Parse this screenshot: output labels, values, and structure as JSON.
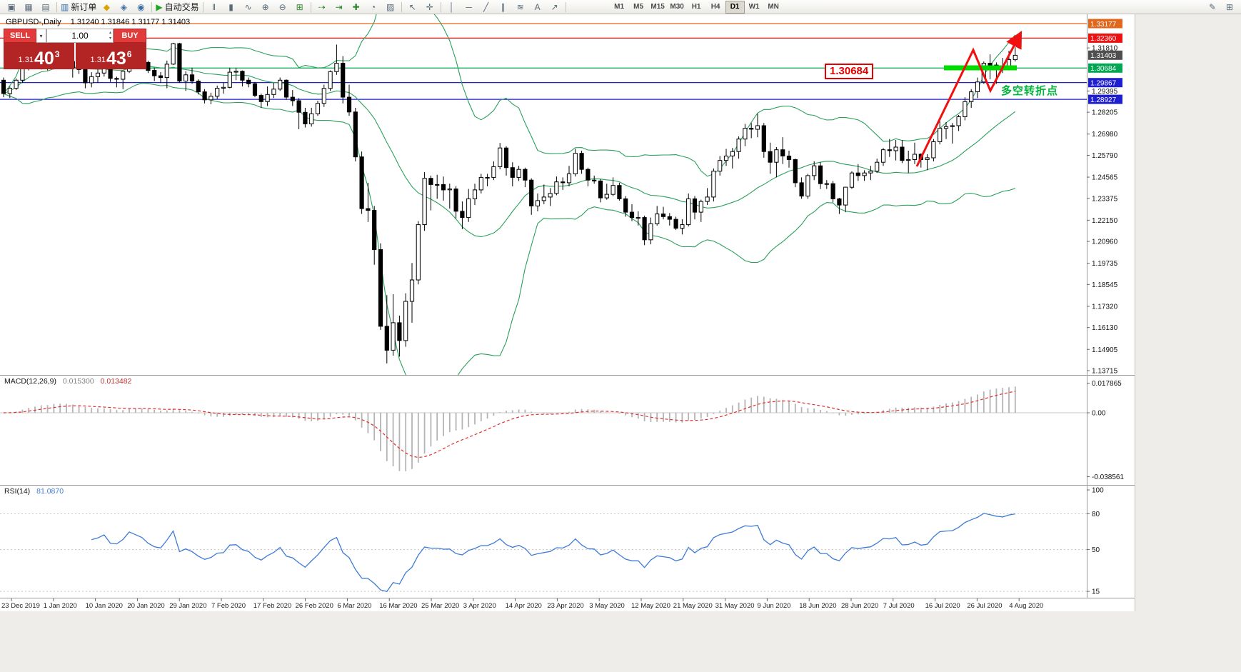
{
  "header": {
    "symbol_period": "GBPUSD-,Daily",
    "ohlc_values": "1.31240 1.31846 1.31177 1.31403"
  },
  "icons": {
    "chevron_down": "▾",
    "spinner_up": "▴",
    "spinner_down": "▾"
  },
  "toolbar": {
    "buttons": [
      {
        "name": "terminal-icon",
        "glyph": "▣"
      },
      {
        "name": "new-chart-icon",
        "glyph": "▦"
      },
      {
        "name": "profiles-icon",
        "glyph": "▤"
      },
      {
        "name": "sep"
      },
      {
        "name": "new-order-button",
        "glyph": "▥",
        "label": "新订单",
        "color": "#3a6ea5"
      },
      {
        "name": "marketwatch-icon",
        "glyph": "◆",
        "color": "#d9a400"
      },
      {
        "name": "data-window-icon",
        "glyph": "◈",
        "color": "#3a6ea5"
      },
      {
        "name": "navigator-icon",
        "glyph": "◉",
        "color": "#3a6ea5"
      },
      {
        "name": "sep"
      },
      {
        "name": "autotrading-button",
        "glyph": "▶",
        "label": "自动交易",
        "color": "#1fa51f"
      },
      {
        "name": "sep"
      },
      {
        "name": "bar-chart-icon",
        "glyph": "‖"
      },
      {
        "name": "candlestick-chart-icon",
        "glyph": "▮"
      },
      {
        "name": "line-chart-icon",
        "glyph": "∿"
      },
      {
        "name": "zoom-in-icon",
        "glyph": "⊕"
      },
      {
        "name": "zoom-out-icon",
        "glyph": "⊖"
      },
      {
        "name": "grid-icon",
        "glyph": "⊞",
        "color": "#2e8b2e"
      },
      {
        "name": "sep"
      },
      {
        "name": "autoscroll-icon",
        "glyph": "⇢",
        "color": "#2e8b2e"
      },
      {
        "name": "chart-shift-icon",
        "glyph": "⇥",
        "color": "#2e8b2e"
      },
      {
        "name": "indicators-icon",
        "glyph": "✚",
        "color": "#2e8b2e"
      },
      {
        "name": "periodicity-icon",
        "glyph": "◔"
      },
      {
        "name": "templates-icon",
        "glyph": "▨"
      },
      {
        "name": "sep"
      },
      {
        "name": "cursor-icon",
        "glyph": "↖"
      },
      {
        "name": "crosshair-icon",
        "glyph": "✛"
      },
      {
        "name": "sep"
      },
      {
        "name": "vertical-line-icon",
        "glyph": "│"
      },
      {
        "name": "horizontal-line-icon",
        "glyph": "─"
      },
      {
        "name": "trendline-icon",
        "glyph": "╱"
      },
      {
        "name": "channel-icon",
        "glyph": "∥"
      },
      {
        "name": "fibonacci-icon",
        "glyph": "≋"
      },
      {
        "name": "text-icon",
        "glyph": "A"
      },
      {
        "name": "arrows-icon",
        "glyph": "↗"
      },
      {
        "name": "sep"
      }
    ],
    "timeframes": [
      {
        "label": "M1"
      },
      {
        "label": "M5"
      },
      {
        "label": "M15"
      },
      {
        "label": "M30"
      },
      {
        "label": "H1"
      },
      {
        "label": "H4"
      },
      {
        "label": "D1",
        "active": true
      },
      {
        "label": "W1"
      },
      {
        "label": "MN"
      }
    ],
    "right_buttons": [
      {
        "name": "edit-icon",
        "glyph": "✎"
      },
      {
        "name": "windows-icon",
        "glyph": "⊞"
      }
    ]
  },
  "trade_panel": {
    "sell_label": "SELL",
    "buy_label": "BUY",
    "volume": "1.00",
    "bid": {
      "prefix": "1.31",
      "big": "40",
      "sup": "3"
    },
    "ask": {
      "prefix": "1.31",
      "big": "43",
      "sup": "6"
    }
  },
  "annotations": {
    "price_callout": "1.30684",
    "turning_point_text": "多空转折点"
  },
  "price_axis": {
    "hlines": [
      {
        "label": "1.33177",
        "value": 1.33177,
        "color": "#e2661b"
      },
      {
        "label": "1.32360",
        "value": 1.3236,
        "color": "#ee1111"
      },
      {
        "label": "1.30684",
        "value": 1.30684,
        "color": "#00a651"
      },
      {
        "label": "1.29867",
        "value": 1.29867,
        "color": "#1f1fd0"
      },
      {
        "label": "1.28927",
        "value": 1.28927,
        "color": "#1f1fd0"
      }
    ],
    "bid_tag": {
      "label": "1.31403",
      "value": 1.31403,
      "bg": "#4f4f4f"
    },
    "ticks": [
      "1.31810",
      "1.29395",
      "1.28205",
      "1.26980",
      "1.25790",
      "1.24565",
      "1.23375",
      "1.22150",
      "1.20960",
      "1.19735",
      "1.18545",
      "1.17320",
      "1.16130",
      "1.14905",
      "1.13715"
    ]
  },
  "macd_panel": {
    "name": "MACD(12,26,9)",
    "value_main": "0.015300",
    "value_signal": "0.013482",
    "scale": [
      {
        "label": "0.017865",
        "value": 0.017865
      },
      {
        "label": "0.00",
        "value": 0
      },
      {
        "label": "-0.038561",
        "value": -0.038561
      }
    ]
  },
  "rsi_panel": {
    "name": "RSI(14)",
    "value": "81.0870",
    "levels": [
      80,
      50,
      15
    ],
    "scale": [
      {
        "label": "100",
        "value": 100
      },
      {
        "label": "80",
        "value": 80
      },
      {
        "label": "50",
        "value": 50
      },
      {
        "label": "15",
        "value": 15
      }
    ]
  },
  "chart_data": {
    "type": "candlestick",
    "symbol": "GBPUSD",
    "period": "Daily",
    "title": "GBPUSD-,Daily 1.31240 1.31846 1.31177 1.31403",
    "price_range_visible": [
      1.135,
      1.3375
    ],
    "overlays": {
      "bollinger": {
        "period": 20,
        "deviation": 2
      }
    },
    "hline_levels": [
      1.33177,
      1.3236,
      1.30684,
      1.29867,
      1.28927
    ],
    "x_axis_dates": [
      "23 Dec 2019",
      "1 Jan 2020",
      "10 Jan 2020",
      "20 Jan 2020",
      "29 Jan 2020",
      "7 Feb 2020",
      "17 Feb 2020",
      "26 Feb 2020",
      "6 Mar 2020",
      "16 Mar 2020",
      "25 Mar 2020",
      "3 Apr 2020",
      "14 Apr 2020",
      "23 Apr 2020",
      "3 May 2020",
      "12 May 2020",
      "21 May 2020",
      "31 May 2020",
      "9 Jun 2020",
      "18 Jun 2020",
      "28 Jun 2020",
      "7 Jul 2020",
      "16 Jul 2020",
      "26 Jul 2020",
      "4 Aug 2020"
    ],
    "candles": [
      [
        1.3,
        1.3015,
        1.2905,
        1.2925
      ],
      [
        1.2925,
        1.2965,
        1.29,
        1.2955
      ],
      [
        1.2955,
        1.301,
        1.2945,
        1.3
      ],
      [
        1.3,
        1.311,
        1.2985,
        1.3085
      ],
      [
        1.3085,
        1.3135,
        1.3055,
        1.3115
      ],
      [
        1.3115,
        1.3155,
        1.3075,
        1.311
      ],
      [
        1.311,
        1.315,
        1.306,
        1.314
      ],
      [
        1.314,
        1.3155,
        1.3055,
        1.3085
      ],
      [
        1.3085,
        1.318,
        1.306,
        1.3165
      ],
      [
        1.3165,
        1.321,
        1.3095,
        1.312
      ],
      [
        1.312,
        1.315,
        1.308,
        1.3105
      ],
      [
        1.3105,
        1.3125,
        1.3015,
        1.307
      ],
      [
        1.307,
        1.309,
        1.3035,
        1.306
      ],
      [
        1.306,
        1.3065,
        1.2955,
        1.2985
      ],
      [
        1.2985,
        1.3045,
        1.296,
        1.302
      ],
      [
        1.302,
        1.306,
        1.2985,
        1.304
      ],
      [
        1.304,
        1.31,
        1.302,
        1.3075
      ],
      [
        1.3075,
        1.3085,
        1.299,
        1.301
      ],
      [
        1.301,
        1.302,
        1.296,
        1.3005
      ],
      [
        1.3005,
        1.3055,
        1.295,
        1.305
      ],
      [
        1.305,
        1.315,
        1.304,
        1.314
      ],
      [
        1.314,
        1.3155,
        1.308,
        1.312
      ],
      [
        1.312,
        1.3135,
        1.307,
        1.31
      ],
      [
        1.31,
        1.311,
        1.304,
        1.3055
      ],
      [
        1.3055,
        1.307,
        1.2995,
        1.3025
      ],
      [
        1.3025,
        1.3045,
        1.2985,
        1.3015
      ],
      [
        1.3015,
        1.311,
        1.2955,
        1.309
      ],
      [
        1.309,
        1.321,
        1.3085,
        1.3205
      ],
      [
        1.3205,
        1.321,
        1.2985,
        1.2995
      ],
      [
        1.2995,
        1.305,
        1.294,
        1.303
      ],
      [
        1.303,
        1.307,
        1.298,
        1.2995
      ],
      [
        1.2995,
        1.3005,
        1.292,
        1.2935
      ],
      [
        1.2935,
        1.295,
        1.287,
        1.289
      ],
      [
        1.289,
        1.293,
        1.2865,
        1.291
      ],
      [
        1.291,
        1.297,
        1.2895,
        1.2955
      ],
      [
        1.2955,
        1.2985,
        1.2925,
        1.296
      ],
      [
        1.296,
        1.307,
        1.2955,
        1.3045
      ],
      [
        1.3045,
        1.307,
        1.3,
        1.305
      ],
      [
        1.305,
        1.3055,
        1.2965,
        1.3
      ],
      [
        1.3,
        1.3015,
        1.296,
        1.298
      ],
      [
        1.298,
        1.299,
        1.2905,
        1.2915
      ],
      [
        1.2915,
        1.2925,
        1.2845,
        1.288
      ],
      [
        1.288,
        1.2965,
        1.2855,
        1.292
      ],
      [
        1.292,
        1.2985,
        1.29,
        1.295
      ],
      [
        1.295,
        1.3015,
        1.294,
        1.3
      ],
      [
        1.3,
        1.3005,
        1.289,
        1.2905
      ],
      [
        1.2905,
        1.2945,
        1.2855,
        1.2885
      ],
      [
        1.2885,
        1.29,
        1.2725,
        1.282
      ],
      [
        1.282,
        1.2845,
        1.2735,
        1.2755
      ],
      [
        1.2755,
        1.2845,
        1.274,
        1.2812
      ],
      [
        1.2812,
        1.2885,
        1.28,
        1.287
      ],
      [
        1.287,
        1.2975,
        1.285,
        1.2954
      ],
      [
        1.2954,
        1.3055,
        1.294,
        1.3048
      ],
      [
        1.3048,
        1.32,
        1.303,
        1.3095
      ],
      [
        1.3095,
        1.3135,
        1.287,
        1.2905
      ],
      [
        1.2905,
        1.2975,
        1.28,
        1.2822
      ],
      [
        1.2822,
        1.2845,
        1.2545,
        1.257
      ],
      [
        1.257,
        1.26,
        1.225,
        1.228
      ],
      [
        1.228,
        1.2425,
        1.2205,
        1.227
      ],
      [
        1.227,
        1.2295,
        1.1965,
        1.205
      ],
      [
        1.205,
        1.2085,
        1.16,
        1.162
      ],
      [
        1.162,
        1.1795,
        1.1412,
        1.1486
      ],
      [
        1.1486,
        1.18,
        1.1455,
        1.164
      ],
      [
        1.164,
        1.168,
        1.145,
        1.154
      ],
      [
        1.154,
        1.1805,
        1.1505,
        1.176
      ],
      [
        1.176,
        1.1975,
        1.164,
        1.188
      ],
      [
        1.188,
        1.221,
        1.1855,
        1.219
      ],
      [
        1.219,
        1.2485,
        1.2155,
        1.245
      ],
      [
        1.245,
        1.2465,
        1.227,
        1.2415
      ],
      [
        1.2415,
        1.247,
        1.2335,
        1.2415
      ],
      [
        1.2415,
        1.246,
        1.2325,
        1.2385
      ],
      [
        1.2385,
        1.242,
        1.228,
        1.239
      ],
      [
        1.239,
        1.2405,
        1.2225,
        1.2265
      ],
      [
        1.2265,
        1.232,
        1.2165,
        1.223
      ],
      [
        1.223,
        1.239,
        1.2205,
        1.2335
      ],
      [
        1.2335,
        1.242,
        1.23,
        1.2385
      ],
      [
        1.2385,
        1.2475,
        1.2365,
        1.2455
      ],
      [
        1.2455,
        1.2475,
        1.2405,
        1.2455
      ],
      [
        1.2455,
        1.2545,
        1.244,
        1.2515
      ],
      [
        1.2515,
        1.2648,
        1.25,
        1.262
      ],
      [
        1.262,
        1.263,
        1.2465,
        1.251
      ],
      [
        1.251,
        1.254,
        1.2405,
        1.2455
      ],
      [
        1.2455,
        1.252,
        1.2435,
        1.25
      ],
      [
        1.25,
        1.251,
        1.24,
        1.244
      ],
      [
        1.244,
        1.245,
        1.2245,
        1.2295
      ],
      [
        1.2295,
        1.2365,
        1.2265,
        1.2325
      ],
      [
        1.2325,
        1.2415,
        1.2305,
        1.2345
      ],
      [
        1.2345,
        1.2395,
        1.2295,
        1.2365
      ],
      [
        1.2365,
        1.246,
        1.2355,
        1.243
      ],
      [
        1.243,
        1.2455,
        1.2385,
        1.2425
      ],
      [
        1.2425,
        1.252,
        1.2405,
        1.2475
      ],
      [
        1.2475,
        1.2615,
        1.246,
        1.259
      ],
      [
        1.259,
        1.2605,
        1.2475,
        1.25
      ],
      [
        1.25,
        1.251,
        1.2405,
        1.244
      ],
      [
        1.244,
        1.2465,
        1.242,
        1.2435
      ],
      [
        1.2435,
        1.2445,
        1.2315,
        1.234
      ],
      [
        1.234,
        1.242,
        1.233,
        1.236
      ],
      [
        1.236,
        1.2455,
        1.235,
        1.241
      ],
      [
        1.241,
        1.2425,
        1.2325,
        1.2335
      ],
      [
        1.2335,
        1.235,
        1.2235,
        1.226
      ],
      [
        1.226,
        1.2305,
        1.221,
        1.223
      ],
      [
        1.223,
        1.2265,
        1.2185,
        1.223
      ],
      [
        1.223,
        1.224,
        1.2075,
        1.2105
      ],
      [
        1.2105,
        1.223,
        1.208,
        1.2195
      ],
      [
        1.2195,
        1.2295,
        1.2185,
        1.225
      ],
      [
        1.225,
        1.229,
        1.222,
        1.2235
      ],
      [
        1.2235,
        1.2255,
        1.2185,
        1.222
      ],
      [
        1.222,
        1.2235,
        1.216,
        1.217
      ],
      [
        1.217,
        1.222,
        1.2135,
        1.219
      ],
      [
        1.219,
        1.2365,
        1.218,
        1.2335
      ],
      [
        1.2335,
        1.235,
        1.222,
        1.226
      ],
      [
        1.226,
        1.233,
        1.2205,
        1.232
      ],
      [
        1.232,
        1.2395,
        1.23,
        1.2345
      ],
      [
        1.2345,
        1.2505,
        1.232,
        1.249
      ],
      [
        1.249,
        1.2575,
        1.2465,
        1.255
      ],
      [
        1.255,
        1.2615,
        1.252,
        1.2575
      ],
      [
        1.2575,
        1.262,
        1.2505,
        1.26
      ],
      [
        1.26,
        1.2685,
        1.256,
        1.267
      ],
      [
        1.267,
        1.2755,
        1.263,
        1.273
      ],
      [
        1.273,
        1.276,
        1.2675,
        1.2725
      ],
      [
        1.2725,
        1.2812,
        1.268,
        1.2745
      ],
      [
        1.2745,
        1.276,
        1.2565,
        1.26
      ],
      [
        1.26,
        1.265,
        1.2475,
        1.254
      ],
      [
        1.254,
        1.2625,
        1.2455,
        1.261
      ],
      [
        1.261,
        1.268,
        1.253,
        1.2575
      ],
      [
        1.2575,
        1.2605,
        1.251,
        1.2555
      ],
      [
        1.2555,
        1.256,
        1.24,
        1.2425
      ],
      [
        1.2425,
        1.2455,
        1.2335,
        1.235
      ],
      [
        1.235,
        1.2475,
        1.2335,
        1.2465
      ],
      [
        1.2465,
        1.2545,
        1.244,
        1.252
      ],
      [
        1.252,
        1.254,
        1.239,
        1.242
      ],
      [
        1.242,
        1.244,
        1.239,
        1.242
      ],
      [
        1.242,
        1.2435,
        1.2315,
        1.2335
      ],
      [
        1.2335,
        1.234,
        1.225,
        1.23
      ],
      [
        1.23,
        1.24,
        1.226,
        1.24
      ],
      [
        1.24,
        1.249,
        1.239,
        1.248
      ],
      [
        1.248,
        1.253,
        1.2435,
        1.2465
      ],
      [
        1.2465,
        1.2495,
        1.2435,
        1.248
      ],
      [
        1.248,
        1.252,
        1.244,
        1.249
      ],
      [
        1.249,
        1.256,
        1.248,
        1.254
      ],
      [
        1.254,
        1.262,
        1.252,
        1.261
      ],
      [
        1.261,
        1.267,
        1.257,
        1.2605
      ],
      [
        1.2605,
        1.2665,
        1.255,
        1.2625
      ],
      [
        1.2625,
        1.2665,
        1.2535,
        1.255
      ],
      [
        1.255,
        1.2605,
        1.248,
        1.2555
      ],
      [
        1.2555,
        1.265,
        1.253,
        1.2585
      ],
      [
        1.2585,
        1.259,
        1.251,
        1.2555
      ],
      [
        1.2555,
        1.2585,
        1.2495,
        1.2565
      ],
      [
        1.2565,
        1.267,
        1.2545,
        1.2655
      ],
      [
        1.2655,
        1.277,
        1.264,
        1.273
      ],
      [
        1.273,
        1.2765,
        1.267,
        1.274
      ],
      [
        1.274,
        1.276,
        1.2645,
        1.2745
      ],
      [
        1.2745,
        1.2805,
        1.2715,
        1.2795
      ],
      [
        1.2795,
        1.2905,
        1.2775,
        1.288
      ],
      [
        1.288,
        1.295,
        1.2845,
        1.2935
      ],
      [
        1.2935,
        1.3015,
        1.29,
        1.299
      ],
      [
        1.299,
        1.3105,
        1.298,
        1.3095
      ],
      [
        1.3095,
        1.3145,
        1.3005,
        1.3085
      ],
      [
        1.3085,
        1.31,
        1.298,
        1.3075
      ],
      [
        1.3075,
        1.3125,
        1.304,
        1.307
      ],
      [
        1.307,
        1.3165,
        1.3055,
        1.3115
      ],
      [
        1.3115,
        1.3185,
        1.3105,
        1.314
      ]
    ]
  }
}
